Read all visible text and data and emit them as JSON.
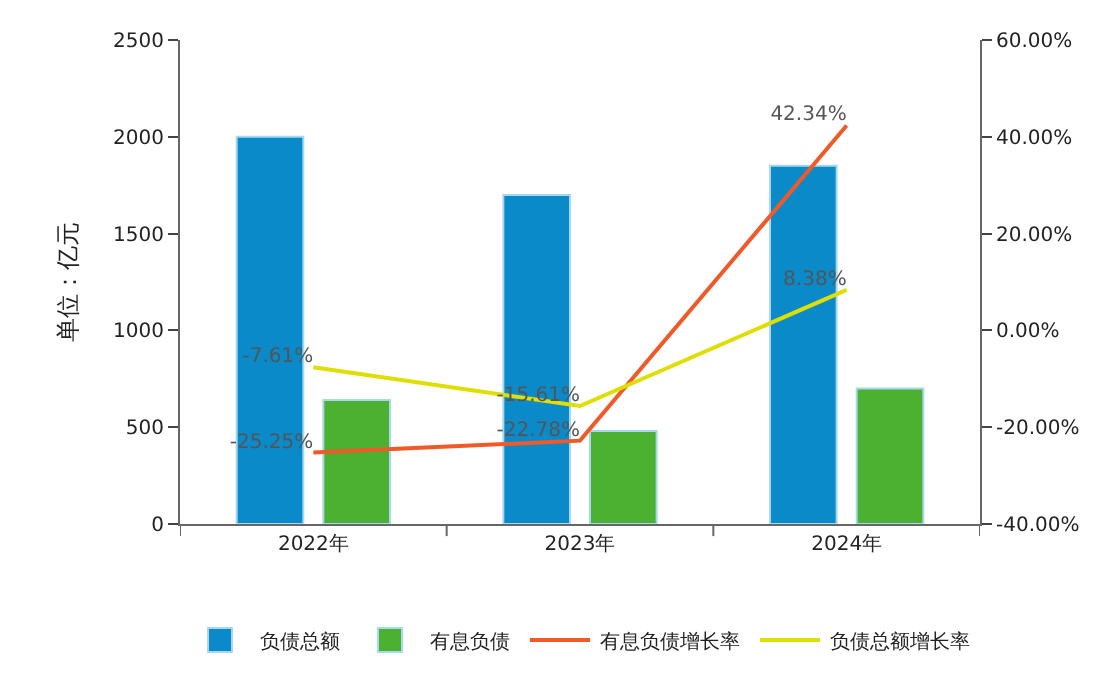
{
  "chart_data": {
    "type": "bar",
    "ylabel": "单位：亿元",
    "categories": [
      "2022年",
      "2023年",
      "2024年"
    ],
    "series": [
      {
        "name": "负债总额",
        "color": "#0a8ac8",
        "values": [
          2000,
          1700,
          1850
        ]
      },
      {
        "name": "有息负债",
        "color": "#4cb030",
        "values": [
          640,
          480,
          700
        ]
      },
      {
        "name": "有息负债增长率",
        "type": "line",
        "axis": "y2",
        "color": "#f05a28",
        "values": [
          -25.25,
          -22.78,
          42.34
        ],
        "value_labels": [
          "-25.25%",
          "-22.78%",
          "42.34%"
        ]
      },
      {
        "name": "负债总额增长率",
        "type": "line",
        "axis": "y2",
        "color": "#dede00",
        "values": [
          -7.61,
          -15.61,
          8.38
        ],
        "value_labels": [
          "-7.61%",
          "-15.61%",
          "8.38%"
        ]
      }
    ],
    "ylim": [
      0,
      2500
    ],
    "yticks": [
      0,
      500,
      1000,
      1500,
      2000,
      2500
    ],
    "y2lim": [
      -40,
      60
    ],
    "y2ticks": [
      {
        "value": -40,
        "label": "-40.00%"
      },
      {
        "value": -20,
        "label": "-20.00%"
      },
      {
        "value": 0,
        "label": "0.00%"
      },
      {
        "value": 20,
        "label": "20.00%"
      },
      {
        "value": 40,
        "label": "40.00%"
      },
      {
        "value": 60,
        "label": "60.00%"
      }
    ],
    "legend": "bottom",
    "marker": "none"
  }
}
